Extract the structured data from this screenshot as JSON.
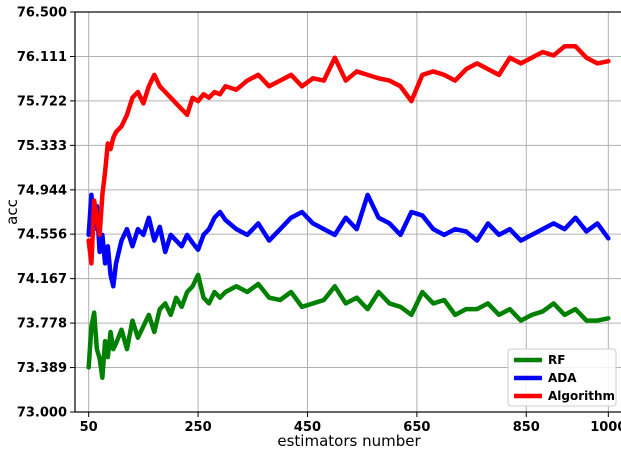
{
  "chart_data": {
    "type": "line",
    "xlabel": "estimators number",
    "ylabel": "acc",
    "xlim": [
      25,
      1025
    ],
    "ylim": [
      73.0,
      76.5
    ],
    "xticks": [
      "50",
      "250",
      "450",
      "650",
      "850",
      "1000"
    ],
    "xtick_values": [
      50,
      250,
      450,
      650,
      850,
      1000
    ],
    "yticks": [
      "73.000",
      "73.389",
      "73.778",
      "74.167",
      "74.556",
      "74.944",
      "75.333",
      "75.722",
      "76.111",
      "76.500"
    ],
    "ytick_values": [
      73.0,
      73.389,
      73.778,
      74.167,
      74.556,
      74.944,
      75.333,
      75.722,
      76.111,
      76.5
    ],
    "grid": true,
    "legend_position": "lower-right",
    "series": [
      {
        "name": "RF",
        "color": "#008000",
        "x": [
          50,
          55,
          60,
          65,
          70,
          75,
          80,
          85,
          90,
          95,
          100,
          110,
          120,
          130,
          140,
          150,
          160,
          170,
          180,
          190,
          200,
          210,
          220,
          230,
          240,
          250,
          260,
          270,
          280,
          290,
          300,
          320,
          340,
          360,
          380,
          400,
          420,
          440,
          460,
          480,
          500,
          520,
          540,
          560,
          580,
          600,
          620,
          640,
          660,
          680,
          700,
          720,
          740,
          760,
          780,
          800,
          820,
          840,
          860,
          880,
          900,
          920,
          940,
          960,
          980,
          1000
        ],
        "y": [
          73.39,
          73.75,
          73.87,
          73.55,
          73.47,
          73.3,
          73.62,
          73.48,
          73.7,
          73.55,
          73.6,
          73.72,
          73.55,
          73.8,
          73.65,
          73.75,
          73.85,
          73.7,
          73.9,
          73.95,
          73.85,
          74.0,
          73.92,
          74.05,
          74.1,
          74.2,
          74.0,
          73.95,
          74.05,
          74.0,
          74.05,
          74.1,
          74.05,
          74.12,
          74.0,
          73.98,
          74.05,
          73.92,
          73.95,
          73.98,
          74.1,
          73.95,
          74.0,
          73.9,
          74.05,
          73.95,
          73.92,
          73.85,
          74.05,
          73.95,
          73.98,
          73.85,
          73.9,
          73.9,
          73.95,
          73.85,
          73.9,
          73.8,
          73.85,
          73.88,
          73.95,
          73.85,
          73.9,
          73.8,
          73.8,
          73.82
        ]
      },
      {
        "name": "ADA",
        "color": "#0000ff",
        "x": [
          50,
          55,
          60,
          65,
          70,
          75,
          80,
          85,
          90,
          95,
          100,
          110,
          120,
          130,
          140,
          150,
          160,
          170,
          180,
          190,
          200,
          210,
          220,
          230,
          240,
          250,
          260,
          270,
          280,
          290,
          300,
          320,
          340,
          360,
          380,
          400,
          420,
          440,
          460,
          480,
          500,
          520,
          540,
          560,
          580,
          600,
          620,
          640,
          660,
          680,
          700,
          720,
          740,
          760,
          780,
          800,
          820,
          840,
          860,
          880,
          900,
          920,
          940,
          960,
          980,
          1000
        ],
        "y": [
          74.55,
          74.9,
          74.6,
          74.8,
          74.4,
          74.55,
          74.3,
          74.45,
          74.2,
          74.1,
          74.3,
          74.5,
          74.6,
          74.45,
          74.6,
          74.55,
          74.7,
          74.5,
          74.62,
          74.4,
          74.55,
          74.5,
          74.45,
          74.55,
          74.48,
          74.42,
          74.55,
          74.6,
          74.7,
          74.75,
          74.68,
          74.6,
          74.55,
          74.65,
          74.5,
          74.6,
          74.7,
          74.75,
          74.65,
          74.6,
          74.55,
          74.7,
          74.6,
          74.9,
          74.7,
          74.65,
          74.55,
          74.75,
          74.72,
          74.6,
          74.55,
          74.6,
          74.58,
          74.5,
          74.65,
          74.55,
          74.6,
          74.5,
          74.55,
          74.6,
          74.65,
          74.6,
          74.7,
          74.58,
          74.65,
          74.52
        ]
      },
      {
        "name": "Algorithm",
        "color": "#ff0000",
        "x": [
          50,
          55,
          60,
          65,
          70,
          75,
          80,
          85,
          90,
          95,
          100,
          110,
          120,
          130,
          140,
          150,
          160,
          170,
          180,
          190,
          200,
          210,
          220,
          230,
          240,
          250,
          260,
          270,
          280,
          290,
          300,
          320,
          340,
          360,
          380,
          400,
          420,
          440,
          460,
          480,
          500,
          520,
          540,
          560,
          580,
          600,
          620,
          640,
          660,
          680,
          700,
          720,
          740,
          760,
          780,
          800,
          820,
          840,
          860,
          880,
          900,
          920,
          940,
          960,
          980,
          1000
        ],
        "y": [
          74.5,
          74.3,
          74.85,
          74.7,
          74.55,
          74.9,
          75.1,
          75.35,
          75.3,
          75.4,
          75.45,
          75.5,
          75.6,
          75.75,
          75.8,
          75.7,
          75.85,
          75.95,
          75.85,
          75.8,
          75.75,
          75.7,
          75.65,
          75.6,
          75.75,
          75.72,
          75.78,
          75.75,
          75.8,
          75.78,
          75.85,
          75.82,
          75.9,
          75.95,
          75.85,
          75.9,
          75.95,
          75.85,
          75.92,
          75.9,
          76.1,
          75.9,
          75.98,
          75.95,
          75.92,
          75.9,
          75.85,
          75.72,
          75.95,
          75.98,
          75.95,
          75.9,
          76.0,
          76.05,
          76.0,
          75.95,
          76.1,
          76.05,
          76.1,
          76.15,
          76.12,
          76.2,
          76.2,
          76.1,
          76.05,
          76.07
        ]
      }
    ]
  }
}
